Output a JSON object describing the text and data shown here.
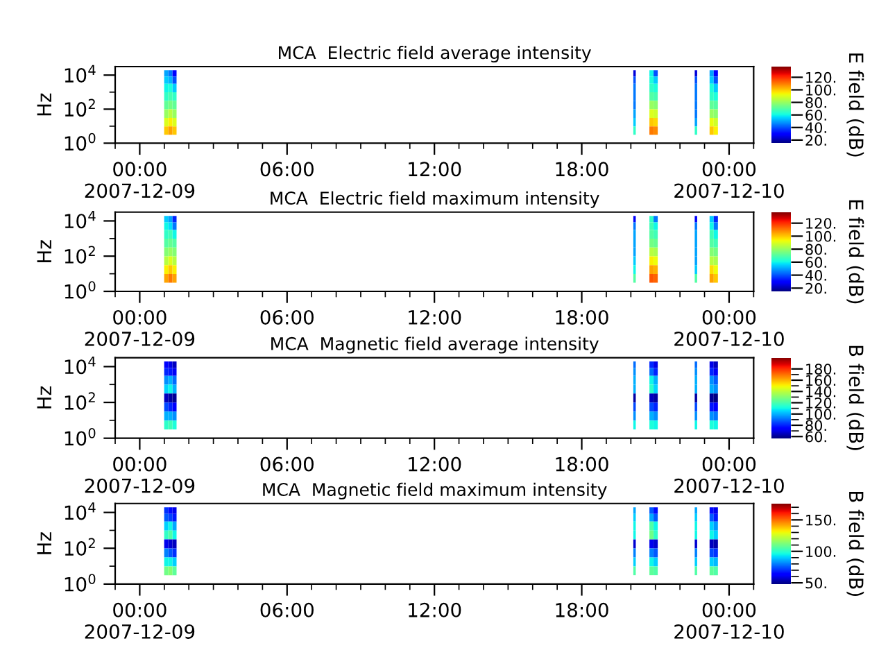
{
  "chart_data": [
    {
      "type": "heatmap",
      "title": "MCA  Electric field average intensity",
      "ylabel": "Hz",
      "clabel": "E field (dB)",
      "log": "y",
      "x": [
        1.08,
        1.25,
        1.42,
        1.58,
        20.05,
        20.15,
        20.25,
        20.67,
        20.84,
        21.01,
        21.18,
        22.55,
        22.65,
        22.75,
        23.12,
        23.29,
        23.46
      ],
      "y": [
        12650,
        5480,
        1730,
        550,
        175,
        55,
        17,
        5.5
      ],
      "cells": [
        [
          50,
          45,
          30,
          null,
          null,
          25,
          null,
          null,
          60,
          40,
          null,
          null,
          25,
          null,
          null,
          50,
          30
        ],
        [
          55,
          52,
          40,
          null,
          null,
          40,
          null,
          null,
          62,
          55,
          null,
          null,
          40,
          null,
          null,
          55,
          40
        ],
        [
          60,
          62,
          55,
          null,
          null,
          45,
          null,
          null,
          65,
          62,
          null,
          null,
          45,
          null,
          null,
          62,
          55
        ],
        [
          65,
          68,
          65,
          null,
          null,
          45,
          null,
          null,
          70,
          68,
          null,
          null,
          45,
          null,
          null,
          65,
          62
        ],
        [
          72,
          75,
          72,
          null,
          null,
          45,
          null,
          null,
          80,
          78,
          null,
          null,
          45,
          null,
          null,
          72,
          70
        ],
        [
          80,
          85,
          80,
          null,
          null,
          50,
          null,
          null,
          90,
          88,
          null,
          null,
          45,
          null,
          null,
          80,
          78
        ],
        [
          90,
          95,
          90,
          null,
          null,
          55,
          null,
          null,
          100,
          98,
          null,
          null,
          50,
          null,
          null,
          92,
          88
        ],
        [
          100,
          105,
          100,
          null,
          null,
          65,
          null,
          null,
          110,
          108,
          null,
          null,
          65,
          null,
          null,
          100,
          95
        ]
      ],
      "clim": [
        15,
        137
      ],
      "cticks": [
        {
          "value": 20,
          "label": "20."
        },
        {
          "value": 40,
          "label": "40."
        },
        {
          "value": 60,
          "label": "60."
        },
        {
          "value": 80,
          "label": "80."
        },
        {
          "value": 100,
          "label": "100."
        },
        {
          "value": 120,
          "label": "120."
        }
      ],
      "xlim": [
        -1,
        25
      ],
      "ylim": [
        1,
        31623
      ],
      "xticks": [
        {
          "value": 0,
          "label": "00:00\n2007-12-09"
        },
        {
          "value": 6,
          "label": "06:00"
        },
        {
          "value": 12,
          "label": "12:00"
        },
        {
          "value": 18,
          "label": "18:00"
        },
        {
          "value": 24,
          "label": "00:00\n2007-12-10"
        }
      ],
      "yticks": [
        {
          "value": 1,
          "label": "10$^{0}$"
        },
        {
          "value": 100,
          "label": "10$^{2}$"
        },
        {
          "value": 10000,
          "label": "10$^{4}$"
        }
      ]
    },
    {
      "type": "heatmap",
      "title": "MCA  Electric field maximum intensity",
      "ylabel": "Hz",
      "clabel": "E field (dB)",
      "log": "y",
      "x": [
        1.08,
        1.25,
        1.42,
        1.58,
        20.05,
        20.15,
        20.25,
        20.67,
        20.84,
        21.01,
        21.18,
        22.55,
        22.65,
        22.75,
        23.12,
        23.29,
        23.46
      ],
      "y": [
        12650,
        5480,
        1730,
        550,
        175,
        55,
        17,
        5.5
      ],
      "cells": [
        [
          55,
          50,
          35,
          null,
          null,
          28,
          null,
          null,
          65,
          45,
          null,
          null,
          28,
          null,
          null,
          55,
          35
        ],
        [
          60,
          57,
          45,
          null,
          null,
          45,
          null,
          null,
          67,
          60,
          null,
          null,
          45,
          null,
          null,
          60,
          45
        ],
        [
          65,
          67,
          60,
          null,
          null,
          50,
          null,
          null,
          70,
          67,
          null,
          null,
          50,
          null,
          null,
          67,
          60
        ],
        [
          70,
          73,
          70,
          null,
          null,
          50,
          null,
          null,
          75,
          73,
          null,
          null,
          50,
          null,
          null,
          70,
          67
        ],
        [
          77,
          80,
          77,
          null,
          null,
          50,
          null,
          null,
          85,
          83,
          null,
          null,
          50,
          null,
          null,
          77,
          75
        ],
        [
          85,
          90,
          85,
          null,
          null,
          55,
          null,
          null,
          95,
          93,
          null,
          null,
          50,
          null,
          null,
          85,
          83
        ],
        [
          95,
          100,
          95,
          null,
          null,
          60,
          null,
          null,
          105,
          103,
          null,
          null,
          55,
          null,
          null,
          97,
          93
        ],
        [
          105,
          110,
          105,
          null,
          null,
          70,
          null,
          null,
          115,
          113,
          null,
          null,
          70,
          null,
          null,
          105,
          100
        ]
      ],
      "clim": [
        15,
        137
      ],
      "cticks": [
        {
          "value": 20,
          "label": "20."
        },
        {
          "value": 40,
          "label": "40."
        },
        {
          "value": 60,
          "label": "60."
        },
        {
          "value": 80,
          "label": "80."
        },
        {
          "value": 100,
          "label": "100."
        },
        {
          "value": 120,
          "label": "120."
        }
      ],
      "xlim": [
        -1,
        25
      ],
      "ylim": [
        1,
        31623
      ],
      "xticks": [
        {
          "value": 0,
          "label": "00:00\n2007-12-09"
        },
        {
          "value": 6,
          "label": "06:00"
        },
        {
          "value": 12,
          "label": "12:00"
        },
        {
          "value": 18,
          "label": "18:00"
        },
        {
          "value": 24,
          "label": "00:00\n2007-12-10"
        }
      ],
      "yticks": [
        {
          "value": 1,
          "label": "10$^{0}$"
        },
        {
          "value": 100,
          "label": "10$^{2}$"
        },
        {
          "value": 10000,
          "label": "10$^{4}$"
        }
      ]
    },
    {
      "type": "heatmap",
      "title": "MCA  Magnetic field average intensity",
      "ylabel": "Hz",
      "clabel": "B field (dB)",
      "log": "y",
      "x": [
        1.08,
        1.25,
        1.42,
        1.58,
        20.05,
        20.15,
        20.25,
        20.67,
        20.84,
        21.01,
        21.18,
        22.55,
        22.65,
        22.75,
        23.12,
        23.29,
        23.46
      ],
      "y": [
        12650,
        5480,
        1730,
        550,
        175,
        55,
        17,
        5.5
      ],
      "cells": [
        [
          75,
          70,
          65,
          null,
          null,
          90,
          null,
          null,
          80,
          70,
          null,
          null,
          90,
          null,
          null,
          70,
          65
        ],
        [
          80,
          78,
          72,
          null,
          null,
          95,
          null,
          null,
          90,
          80,
          null,
          null,
          95,
          null,
          null,
          80,
          72
        ],
        [
          95,
          100,
          90,
          null,
          null,
          100,
          null,
          null,
          110,
          100,
          null,
          null,
          100,
          null,
          null,
          95,
          88
        ],
        [
          105,
          110,
          100,
          null,
          null,
          100,
          null,
          null,
          115,
          105,
          null,
          null,
          100,
          null,
          null,
          100,
          95
        ],
        [
          65,
          62,
          60,
          null,
          null,
          62,
          null,
          null,
          65,
          62,
          null,
          null,
          62,
          null,
          null,
          60,
          58
        ],
        [
          85,
          80,
          75,
          null,
          null,
          85,
          null,
          null,
          85,
          80,
          null,
          null,
          85,
          null,
          null,
          78,
          75
        ],
        [
          100,
          100,
          95,
          null,
          null,
          95,
          null,
          null,
          100,
          95,
          null,
          null,
          95,
          null,
          null,
          95,
          92
        ],
        [
          115,
          118,
          112,
          null,
          null,
          110,
          null,
          null,
          112,
          110,
          null,
          null,
          110,
          null,
          null,
          112,
          110
        ]
      ],
      "clim": [
        57,
        200
      ],
      "cticks": [
        {
          "value": 60,
          "label": "60."
        },
        {
          "value": 70,
          "label": null
        },
        {
          "value": 80,
          "label": "80."
        },
        {
          "value": 90,
          "label": null
        },
        {
          "value": 100,
          "label": "100."
        },
        {
          "value": 110,
          "label": null
        },
        {
          "value": 120,
          "label": "120."
        },
        {
          "value": 130,
          "label": null
        },
        {
          "value": 140,
          "label": "140."
        },
        {
          "value": 150,
          "label": null
        },
        {
          "value": 160,
          "label": "160."
        },
        {
          "value": 170,
          "label": null
        },
        {
          "value": 180,
          "label": "180."
        }
      ],
      "xlim": [
        -1,
        25
      ],
      "ylim": [
        1,
        31623
      ],
      "xticks": [
        {
          "value": 0,
          "label": "00:00\n2007-12-09"
        },
        {
          "value": 6,
          "label": "06:00"
        },
        {
          "value": 12,
          "label": "12:00"
        },
        {
          "value": 18,
          "label": "18:00"
        },
        {
          "value": 24,
          "label": "00:00\n2007-12-10"
        }
      ],
      "yticks": [
        {
          "value": 1,
          "label": "10$^{0}$"
        },
        {
          "value": 100,
          "label": "10$^{2}$"
        },
        {
          "value": 10000,
          "label": "10$^{4}$"
        }
      ]
    },
    {
      "type": "heatmap",
      "title": "MCA  Magnetic field maximum intensity",
      "ylabel": "Hz",
      "clabel": "B field (dB)",
      "log": "y",
      "x": [
        1.08,
        1.25,
        1.42,
        1.58,
        20.05,
        20.15,
        20.25,
        20.67,
        20.84,
        21.01,
        21.18,
        22.55,
        22.65,
        22.75,
        23.12,
        23.29,
        23.46
      ],
      "y": [
        12650,
        5480,
        1730,
        550,
        175,
        55,
        17,
        5.5
      ],
      "cells": [
        [
          70,
          65,
          60,
          null,
          null,
          85,
          null,
          null,
          75,
          65,
          null,
          null,
          85,
          null,
          null,
          65,
          60
        ],
        [
          75,
          72,
          67,
          null,
          null,
          90,
          null,
          null,
          85,
          75,
          null,
          null,
          90,
          null,
          null,
          75,
          67
        ],
        [
          90,
          95,
          85,
          null,
          null,
          95,
          null,
          null,
          105,
          95,
          null,
          null,
          95,
          null,
          null,
          90,
          83
        ],
        [
          100,
          105,
          95,
          null,
          null,
          95,
          null,
          null,
          110,
          100,
          null,
          null,
          95,
          null,
          null,
          95,
          90
        ],
        [
          60,
          57,
          55,
          null,
          null,
          57,
          null,
          null,
          60,
          57,
          null,
          null,
          57,
          null,
          null,
          55,
          53
        ],
        [
          80,
          75,
          70,
          null,
          null,
          80,
          null,
          null,
          80,
          75,
          null,
          null,
          80,
          null,
          null,
          73,
          70
        ],
        [
          95,
          95,
          90,
          null,
          null,
          90,
          null,
          null,
          95,
          90,
          null,
          null,
          90,
          null,
          null,
          90,
          87
        ],
        [
          110,
          113,
          107,
          null,
          null,
          105,
          null,
          null,
          107,
          105,
          null,
          null,
          105,
          null,
          null,
          107,
          105
        ]
      ],
      "clim": [
        48,
        176
      ],
      "cticks": [
        {
          "value": 50,
          "label": "50."
        },
        {
          "value": 60,
          "label": null
        },
        {
          "value": 70,
          "label": null
        },
        {
          "value": 80,
          "label": null
        },
        {
          "value": 90,
          "label": null
        },
        {
          "value": 100,
          "label": "100."
        },
        {
          "value": 110,
          "label": null
        },
        {
          "value": 120,
          "label": null
        },
        {
          "value": 130,
          "label": null
        },
        {
          "value": 140,
          "label": null
        },
        {
          "value": 150,
          "label": "150."
        },
        {
          "value": 160,
          "label": null
        },
        {
          "value": 170,
          "label": null
        }
      ],
      "xlim": [
        -1,
        25
      ],
      "ylim": [
        1,
        31623
      ],
      "xticks": [
        {
          "value": 0,
          "label": "00:00\n2007-12-09"
        },
        {
          "value": 6,
          "label": "06:00"
        },
        {
          "value": 12,
          "label": "12:00"
        },
        {
          "value": 18,
          "label": "18:00"
        },
        {
          "value": 24,
          "label": "00:00\n2007-12-10"
        }
      ],
      "yticks": [
        {
          "value": 1,
          "label": "10$^{0}$"
        },
        {
          "value": 100,
          "label": "10$^{2}$"
        },
        {
          "value": 10000,
          "label": "10$^{4}$"
        }
      ]
    }
  ]
}
